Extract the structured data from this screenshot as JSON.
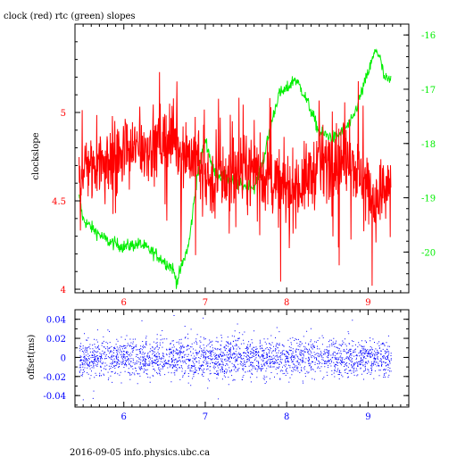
{
  "figure": {
    "title": "clock (red) rtc (green) slopes",
    "footer": "2016-09-05 info.physics.ubc.ca"
  },
  "colors": {
    "clock": "#ff0000",
    "rtc": "#00ee00",
    "offset": "#0000ff",
    "axis": "#000000"
  },
  "chart_data": [
    {
      "type": "line",
      "title": "clock (red) rtc (green) slopes",
      "xlim": [
        5.4,
        9.5
      ],
      "x_ticks": [
        6,
        7,
        8,
        9
      ],
      "x_tick_labels": [
        "6",
        "7",
        "8",
        "9"
      ],
      "y_left": {
        "label": "clockslope",
        "range": [
          3.98,
          5.5
        ],
        "ticks": [
          4,
          4.5,
          5
        ],
        "tick_labels": [
          "4",
          "4.5",
          "5"
        ]
      },
      "y_right": {
        "label": "",
        "range": [
          -20.75,
          -15.8
        ],
        "ticks": [
          -16,
          -17,
          -18,
          -19,
          -20
        ],
        "tick_labels": [
          "-16",
          "-17",
          "-18",
          "-19",
          "-20"
        ]
      },
      "series": [
        {
          "name": "clock",
          "axis": "left",
          "x": [
            5.45,
            5.6,
            5.8,
            6.0,
            6.2,
            6.4,
            6.6,
            6.8,
            6.9,
            7.0,
            7.1,
            7.2,
            7.4,
            7.6,
            7.8,
            8.0,
            8.2,
            8.4,
            8.6,
            8.8,
            9.0,
            9.1,
            9.2,
            9.28
          ],
          "y": [
            4.68,
            4.72,
            4.74,
            4.76,
            4.8,
            4.82,
            4.86,
            4.76,
            4.74,
            4.64,
            4.6,
            4.62,
            4.66,
            4.68,
            4.62,
            4.56,
            4.6,
            4.7,
            4.74,
            4.72,
            4.56,
            4.5,
            4.56,
            4.62
          ],
          "noise": 0.1
        },
        {
          "name": "rtc",
          "axis": "right",
          "x": [
            5.45,
            5.5,
            5.6,
            5.8,
            6.0,
            6.2,
            6.4,
            6.6,
            6.65,
            6.8,
            6.9,
            7.0,
            7.1,
            7.2,
            7.4,
            7.6,
            7.7,
            7.8,
            7.9,
            8.0,
            8.1,
            8.2,
            8.3,
            8.4,
            8.6,
            8.8,
            9.0,
            9.1,
            9.15,
            9.2,
            9.28
          ],
          "y": [
            -19.0,
            -19.4,
            -19.55,
            -19.8,
            -19.9,
            -19.85,
            -20.05,
            -20.3,
            -20.55,
            -19.85,
            -18.6,
            -17.9,
            -18.5,
            -18.6,
            -18.75,
            -18.8,
            -18.4,
            -17.7,
            -17.1,
            -17.0,
            -16.8,
            -17.05,
            -17.4,
            -17.8,
            -17.9,
            -17.6,
            -16.7,
            -16.25,
            -16.45,
            -16.8,
            -16.85
          ]
        }
      ]
    },
    {
      "type": "scatter",
      "xlim": [
        5.4,
        9.5
      ],
      "ylim": [
        -0.052,
        0.05
      ],
      "x_ticks": [
        6,
        7,
        8,
        9
      ],
      "x_tick_labels": [
        "6",
        "7",
        "8",
        "9"
      ],
      "y_ticks": [
        0.04,
        0.02,
        0,
        -0.02,
        -0.04
      ],
      "y_tick_labels": [
        "0.04",
        "0.02",
        "0",
        "-0.02",
        "-0.04"
      ],
      "ylabel": "offset(ms)",
      "series": [
        {
          "name": "offset",
          "x_range": [
            5.45,
            9.28
          ],
          "center": 0.0,
          "spread": 0.01,
          "extreme": [
            -0.045,
            0.045
          ]
        }
      ]
    }
  ]
}
